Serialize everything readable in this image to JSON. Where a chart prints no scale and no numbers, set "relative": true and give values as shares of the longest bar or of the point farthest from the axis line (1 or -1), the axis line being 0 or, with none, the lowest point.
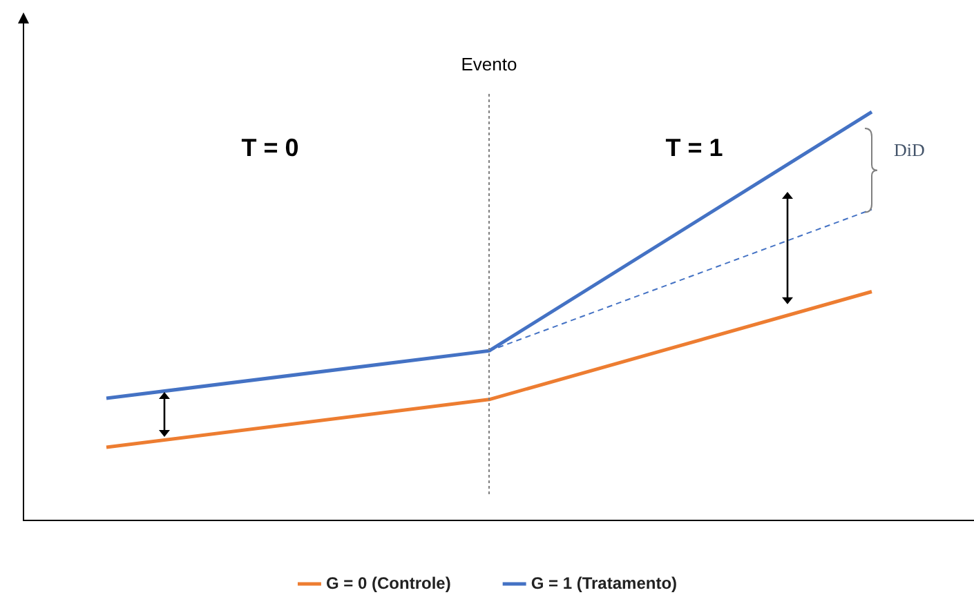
{
  "chart_data": {
    "type": "line",
    "relative": true,
    "categories": [
      null,
      null,
      null
    ],
    "series": [
      {
        "name": "G = 0 (Controle)",
        "color": "#ed7d31",
        "values": [
          0.179,
          0.296,
          0.56
        ]
      },
      {
        "name": "G = 1 (Tratamento)",
        "color": "#4472c4",
        "values": [
          0.299,
          0.415,
          1
        ]
      },
      {
        "color": "#4472c4",
        "values": [
          null,
          0.415,
          0.761
        ],
        "line_style": "dashed"
      }
    ],
    "annotations": [
      "T = 0",
      "T = 1",
      "DiD",
      "Evento"
    ],
    "legend": "bottom",
    "marker": "none"
  }
}
